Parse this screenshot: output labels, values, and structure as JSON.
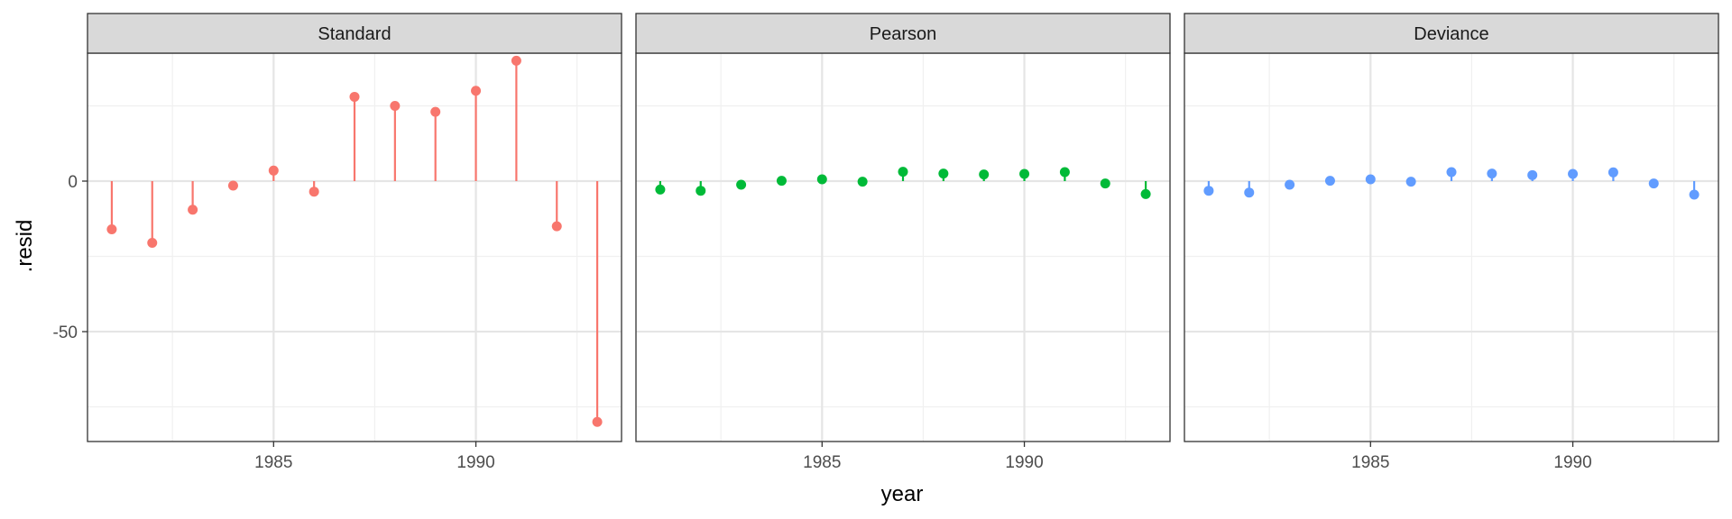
{
  "chart_data": {
    "type": "scatter",
    "xlabel": "year",
    "ylabel": ".resid",
    "xlim": [
      1980.4,
      1993.6
    ],
    "ylim": [
      -86.5,
      42.5
    ],
    "x_ticks": [
      1985,
      1990
    ],
    "x_minor": [
      1982.5,
      1987.5,
      1992.5
    ],
    "y_ticks": [
      0,
      -50
    ],
    "y_tick_labels": [
      "0",
      "-50"
    ],
    "y_minor": [
      25,
      -25,
      -75
    ],
    "grid": true,
    "legend": "none",
    "x": [
      1981,
      1982,
      1983,
      1984,
      1985,
      1986,
      1987,
      1988,
      1989,
      1990,
      1991,
      1992,
      1993
    ],
    "panels": [
      {
        "name": "Standard",
        "color": "#F8766D",
        "values": [
          -16,
          -20.5,
          -9.5,
          -1.5,
          3.5,
          -3.5,
          28,
          25,
          23,
          30,
          40,
          -15,
          -80
        ]
      },
      {
        "name": "Pearson",
        "color": "#00BA38",
        "values": [
          -2.8,
          -3.2,
          -1.2,
          0.1,
          0.6,
          -0.2,
          3.1,
          2.5,
          2.2,
          2.4,
          3.0,
          -0.8,
          -4.3
        ]
      },
      {
        "name": "Deviance",
        "color": "#619CFF",
        "values": [
          -3.2,
          -3.8,
          -1.2,
          0.1,
          0.6,
          -0.2,
          3.0,
          2.5,
          2.0,
          2.4,
          2.9,
          -0.8,
          -4.5
        ]
      }
    ]
  }
}
